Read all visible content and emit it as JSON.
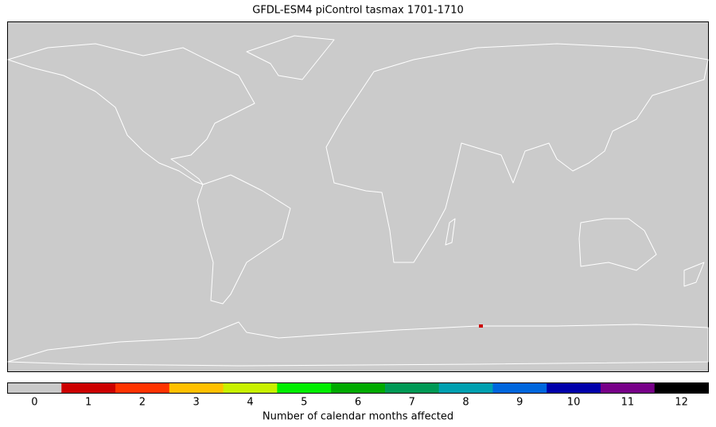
{
  "title": "GFDL-ESM4 piControl tasmax 1701-1710",
  "colorbar": {
    "label": "Number of calendar months affected",
    "ticks": [
      0,
      1,
      2,
      3,
      4,
      5,
      6,
      7,
      8,
      9,
      10,
      11,
      12
    ],
    "colors": [
      "#c9c9c9",
      "#cc0000",
      "#ff3300",
      "#ffc000",
      "#c8f000",
      "#00ee00",
      "#00aa00",
      "#009955",
      "#00a0b0",
      "#0066dd",
      "#0000aa",
      "#770088",
      "#000000"
    ]
  }
}
